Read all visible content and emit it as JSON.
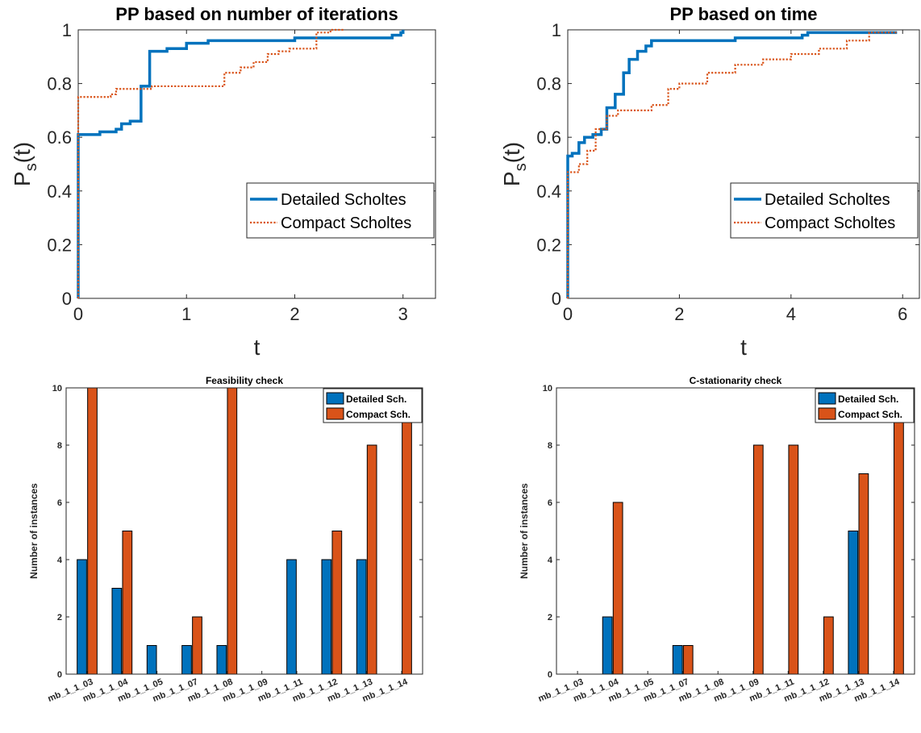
{
  "chart_data": [
    {
      "type": "line",
      "title": "PP based on number of iterations",
      "xlabel": "t",
      "ylabel": "P",
      "ylabel_sub": "s",
      "ylabel_suffix": "(t)",
      "xlim": [
        0,
        3.3
      ],
      "ylim": [
        0,
        1
      ],
      "xticks": [
        0,
        1,
        2,
        3
      ],
      "yticks": [
        0,
        0.2,
        0.4,
        0.6,
        0.8,
        1
      ],
      "xtick_labels": [
        "0",
        "1",
        "2",
        "3"
      ],
      "ytick_labels": [
        "0",
        "0.2",
        "0.4",
        "0.6",
        "0.8",
        "1"
      ],
      "legend_position": "middle-right",
      "series": [
        {
          "name": "Detailed Scholtes",
          "color": "#0072BD",
          "style": "solid",
          "x": [
            0,
            0,
            0.2,
            0.35,
            0.4,
            0.48,
            0.58,
            0.66,
            0.82,
            1.0,
            1.2,
            1.5,
            2.0,
            2.5,
            2.9,
            2.98,
            3.0
          ],
          "y": [
            0,
            0.61,
            0.62,
            0.63,
            0.65,
            0.66,
            0.79,
            0.92,
            0.93,
            0.95,
            0.96,
            0.96,
            0.97,
            0.97,
            0.98,
            0.99,
            1.0
          ]
        },
        {
          "name": "Compact Scholtes",
          "color": "#D95319",
          "style": "dotted",
          "x": [
            0,
            0,
            0.1,
            0.3,
            0.35,
            0.6,
            0.68,
            0.8,
            1.35,
            1.5,
            1.62,
            1.75,
            1.85,
            1.95,
            2.2,
            2.33,
            2.45
          ],
          "y": [
            0,
            0.75,
            0.75,
            0.76,
            0.78,
            0.78,
            0.79,
            0.79,
            0.84,
            0.86,
            0.88,
            0.91,
            0.92,
            0.93,
            0.99,
            1.0,
            1.0
          ]
        }
      ]
    },
    {
      "type": "line",
      "title": "PP based on time",
      "xlabel": "t",
      "ylabel": "P",
      "ylabel_sub": "s",
      "ylabel_suffix": "(t)",
      "xlim": [
        0,
        6.3
      ],
      "ylim": [
        0,
        1
      ],
      "xticks": [
        0,
        2,
        4,
        6
      ],
      "yticks": [
        0,
        0.2,
        0.4,
        0.6,
        0.8,
        1
      ],
      "xtick_labels": [
        "0",
        "2",
        "4",
        "6"
      ],
      "ytick_labels": [
        "0",
        "0.2",
        "0.4",
        "0.6",
        "0.8",
        "1"
      ],
      "legend_position": "middle-right",
      "series": [
        {
          "name": "Detailed Scholtes",
          "color": "#0072BD",
          "style": "solid",
          "x": [
            0,
            0,
            0.08,
            0.2,
            0.3,
            0.45,
            0.6,
            0.7,
            0.85,
            1.0,
            1.1,
            1.25,
            1.4,
            1.5,
            2.0,
            3.0,
            4.0,
            4.2,
            4.3,
            5.9
          ],
          "y": [
            0,
            0.53,
            0.54,
            0.58,
            0.6,
            0.61,
            0.63,
            0.71,
            0.76,
            0.84,
            0.89,
            0.92,
            0.94,
            0.96,
            0.96,
            0.97,
            0.97,
            0.98,
            0.99,
            0.99
          ]
        },
        {
          "name": "Compact Scholtes",
          "color": "#D95319",
          "style": "dotted",
          "x": [
            0,
            0,
            0.2,
            0.35,
            0.5,
            0.7,
            0.9,
            1.3,
            1.5,
            1.8,
            2.0,
            2.5,
            3.0,
            3.5,
            4.0,
            4.5,
            5.0,
            5.4,
            5.9
          ],
          "y": [
            0,
            0.47,
            0.5,
            0.55,
            0.63,
            0.68,
            0.7,
            0.7,
            0.72,
            0.78,
            0.8,
            0.84,
            0.87,
            0.89,
            0.91,
            0.93,
            0.96,
            0.99,
            0.99
          ]
        }
      ]
    },
    {
      "type": "bar",
      "title": "Feasibility check",
      "xlabel": "",
      "ylabel": "Number of instances",
      "ylim": [
        0,
        10
      ],
      "yticks": [
        0,
        2,
        4,
        6,
        8,
        10
      ],
      "ytick_labels": [
        "0",
        "2",
        "4",
        "6",
        "8",
        "10"
      ],
      "legend_position": "top-right",
      "categories": [
        "mb_1_1_03",
        "mb_1_1_04",
        "mb_1_1_05",
        "mb_1_1_07",
        "mb_1_1_08",
        "mb_1_1_09",
        "mb_1_1_11",
        "mb_1_1_12",
        "mb_1_1_13",
        "mb_1_1_14"
      ],
      "series": [
        {
          "name": "Detailed Sch.",
          "color": "#0072BD",
          "values": [
            4,
            3,
            1,
            1,
            1,
            0,
            4,
            4,
            4,
            0
          ]
        },
        {
          "name": "Compact Sch.",
          "color": "#D95319",
          "values": [
            10,
            5,
            0,
            2,
            10,
            0,
            0,
            5,
            8,
            10
          ]
        }
      ]
    },
    {
      "type": "bar",
      "title": "C-stationarity check",
      "xlabel": "",
      "ylabel": "Number of instances",
      "ylim": [
        0,
        10
      ],
      "yticks": [
        0,
        2,
        4,
        6,
        8,
        10
      ],
      "ytick_labels": [
        "0",
        "2",
        "4",
        "6",
        "8",
        "10"
      ],
      "legend_position": "top-right",
      "categories": [
        "mb_1_1_03",
        "mb_1_1_04",
        "mb_1_1_05",
        "mb_1_1_07",
        "mb_1_1_08",
        "mb_1_1_09",
        "mb_1_1_11",
        "mb_1_1_12",
        "mb_1_1_13",
        "mb_1_1_14"
      ],
      "series": [
        {
          "name": "Detailed Sch.",
          "color": "#0072BD",
          "values": [
            0,
            2,
            0,
            1,
            0,
            0,
            0,
            0,
            5,
            0
          ]
        },
        {
          "name": "Compact Sch.",
          "color": "#D95319",
          "values": [
            0,
            6,
            0,
            1,
            0,
            8,
            8,
            2,
            7,
            10
          ]
        }
      ]
    }
  ]
}
